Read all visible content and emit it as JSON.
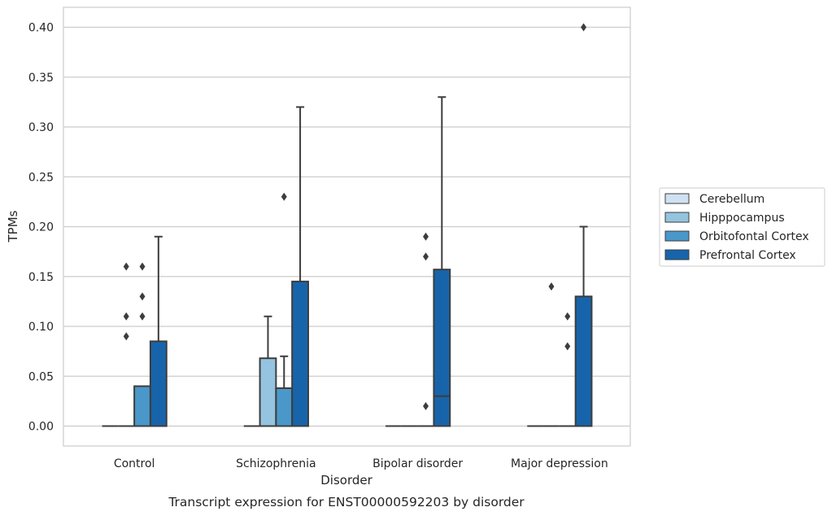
{
  "chart_data": {
    "type": "box",
    "caption": "Transcript expression for ENST00000592203 by disorder",
    "xlabel": "Disorder",
    "ylabel": "TPMs",
    "ylim": [
      -0.02,
      0.42
    ],
    "yticks": [
      "0.00",
      "0.05",
      "0.10",
      "0.15",
      "0.20",
      "0.25",
      "0.30",
      "0.35",
      "0.40"
    ],
    "grid": true,
    "legend_position": "right",
    "categories": [
      "Control",
      "Schizophrenia",
      "Bipolar disorder",
      "Major depression"
    ],
    "series": [
      {
        "name": "Cerebellum",
        "color": "#d0e1f2",
        "boxes": [
          {
            "q1": 0,
            "median": 0,
            "q3": 0,
            "whisker_low": 0,
            "whisker_high": 0,
            "outliers": []
          },
          {
            "q1": 0,
            "median": 0,
            "q3": 0,
            "whisker_low": 0,
            "whisker_high": 0,
            "outliers": []
          },
          {
            "q1": 0,
            "median": 0,
            "q3": 0,
            "whisker_low": 0,
            "whisker_high": 0,
            "outliers": []
          },
          {
            "q1": 0,
            "median": 0,
            "q3": 0,
            "whisker_low": 0,
            "whisker_high": 0,
            "outliers": []
          }
        ]
      },
      {
        "name": "Hipppocampus",
        "color": "#94c4df",
        "boxes": [
          {
            "q1": 0,
            "median": 0,
            "q3": 0,
            "whisker_low": 0,
            "whisker_high": 0,
            "outliers": [
              0.09,
              0.11,
              0.16
            ]
          },
          {
            "q1": 0,
            "median": 0,
            "q3": 0.068,
            "whisker_low": 0,
            "whisker_high": 0.11,
            "outliers": []
          },
          {
            "q1": 0,
            "median": 0,
            "q3": 0,
            "whisker_low": 0,
            "whisker_high": 0,
            "outliers": []
          },
          {
            "q1": 0,
            "median": 0,
            "q3": 0,
            "whisker_low": 0,
            "whisker_high": 0,
            "outliers": [
              0.14
            ]
          }
        ]
      },
      {
        "name": "Orbitofontal Cortex",
        "color": "#4a98c9",
        "boxes": [
          {
            "q1": 0,
            "median": 0,
            "q3": 0.04,
            "whisker_low": 0,
            "whisker_high": 0.04,
            "outliers": [
              0.11,
              0.13,
              0.16
            ]
          },
          {
            "q1": 0,
            "median": 0,
            "q3": 0.038,
            "whisker_low": 0,
            "whisker_high": 0.07,
            "outliers": [
              0.23
            ]
          },
          {
            "q1": 0,
            "median": 0,
            "q3": 0,
            "whisker_low": 0,
            "whisker_high": 0,
            "outliers": [
              0.02,
              0.17,
              0.19
            ]
          },
          {
            "q1": 0,
            "median": 0,
            "q3": 0,
            "whisker_low": 0,
            "whisker_high": 0,
            "outliers": [
              0.08,
              0.11
            ]
          }
        ]
      },
      {
        "name": "Prefrontal Cortex",
        "color": "#1764ab",
        "boxes": [
          {
            "q1": 0,
            "median": 0,
            "q3": 0.085,
            "whisker_low": 0,
            "whisker_high": 0.19,
            "outliers": []
          },
          {
            "q1": 0,
            "median": 0,
            "q3": 0.145,
            "whisker_low": 0,
            "whisker_high": 0.32,
            "outliers": []
          },
          {
            "q1": 0,
            "median": 0.03,
            "q3": 0.157,
            "whisker_low": 0,
            "whisker_high": 0.33,
            "outliers": []
          },
          {
            "q1": 0,
            "median": 0,
            "q3": 0.13,
            "whisker_low": 0,
            "whisker_high": 0.2,
            "outliers": [
              0.4
            ]
          }
        ]
      }
    ]
  }
}
